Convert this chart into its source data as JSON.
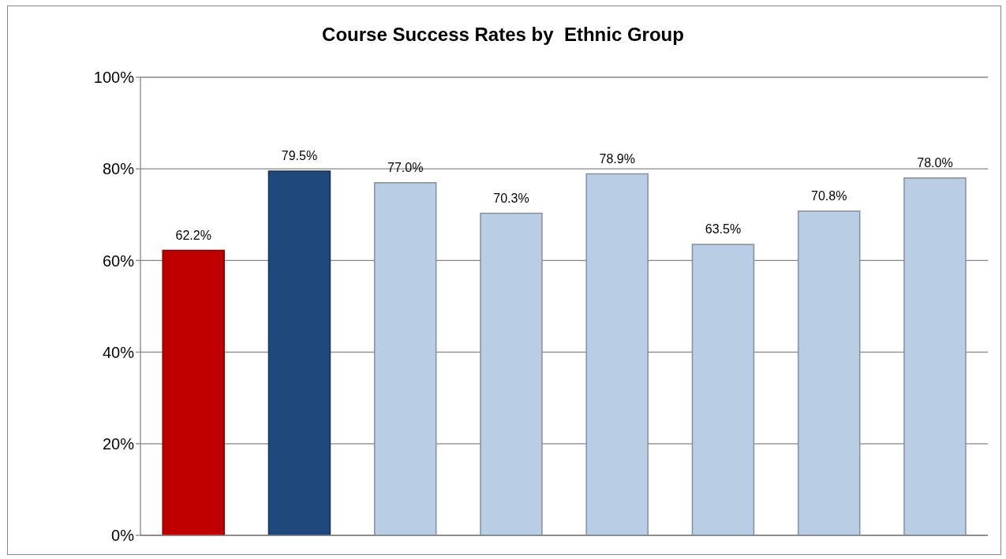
{
  "chart_data": {
    "type": "bar",
    "title": "Course Success Rates by  Ethnic Group",
    "categories": [
      null,
      null,
      null,
      null,
      null,
      null,
      null,
      null
    ],
    "values": [
      62.2,
      79.5,
      77.0,
      70.3,
      78.9,
      63.5,
      70.8,
      78.0
    ],
    "colors": [
      "#c00000",
      "#1f497d",
      "#b9cde5",
      "#b9cde5",
      "#b9cde5",
      "#b9cde5",
      "#b9cde5",
      "#b9cde5"
    ],
    "value_labels": [
      "62.2%",
      "79.5%",
      "77.0%",
      "70.3%",
      "78.9%",
      "63.5%",
      "70.8%",
      "78.0%"
    ],
    "ylim": [
      0,
      100
    ],
    "yticks": [
      {
        "value": 0,
        "label": "0%"
      },
      {
        "value": 20,
        "label": "20%"
      },
      {
        "value": 40,
        "label": "40%"
      },
      {
        "value": 60,
        "label": "60%"
      },
      {
        "value": 80,
        "label": "80%"
      },
      {
        "value": 100,
        "label": "100%"
      }
    ],
    "grid": "y"
  }
}
